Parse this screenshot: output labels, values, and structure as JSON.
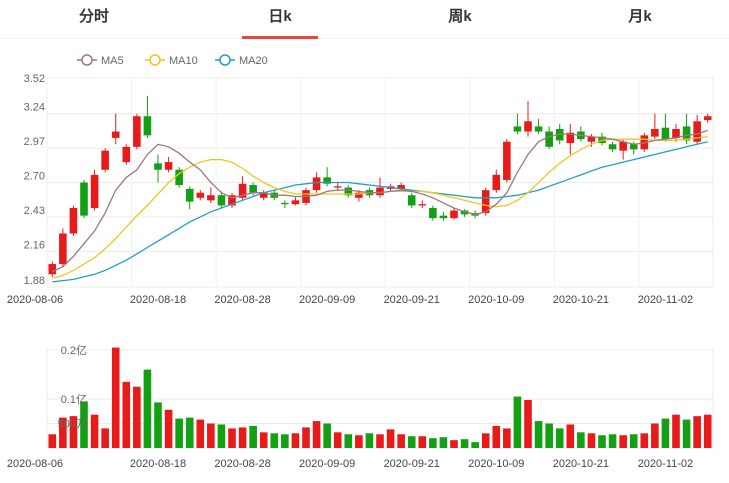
{
  "tabs": [
    {
      "label": "分时",
      "active": false
    },
    {
      "label": "日k",
      "active": true
    },
    {
      "label": "周k",
      "active": false
    },
    {
      "label": "月k",
      "active": false
    }
  ],
  "colors": {
    "up": "#e81b1b",
    "down": "#14a014",
    "ma5": "#a07878",
    "ma10": "#f2c61c",
    "ma20": "#21a0c6",
    "tab_active": "#e8473b"
  },
  "chart_data": [
    {
      "type": "candlestick",
      "legend": [
        {
          "name": "MA5",
          "color": "#a07878"
        },
        {
          "name": "MA10",
          "color": "#f2c61c"
        },
        {
          "name": "MA20",
          "color": "#21a0c6"
        }
      ],
      "y_ticks": [
        "3.52",
        "3.24",
        "2.97",
        "2.70",
        "2.43",
        "2.16",
        "1.88"
      ],
      "ylim": [
        1.88,
        3.52
      ],
      "x_ticks": [
        "2020-08-06",
        "2020-08-18",
        "2020-08-28",
        "2020-09-09",
        "2020-09-21",
        "2020-10-09",
        "2020-10-21",
        "2020-11-02"
      ],
      "x_tick_index": [
        0,
        10,
        18,
        26,
        34,
        42,
        50,
        58
      ],
      "candles": [
        [
          1.98,
          2.06,
          2.08,
          1.96
        ],
        [
          2.06,
          2.3,
          2.34,
          2.04
        ],
        [
          2.3,
          2.5,
          2.52,
          2.28
        ],
        [
          2.7,
          2.44,
          2.72,
          2.42
        ],
        [
          2.5,
          2.76,
          2.8,
          2.48
        ],
        [
          2.8,
          2.95,
          2.97,
          2.78
        ],
        [
          3.05,
          3.1,
          3.24,
          3.0
        ],
        [
          2.86,
          2.98,
          3.0,
          2.84
        ],
        [
          2.98,
          3.22,
          3.24,
          2.96
        ],
        [
          3.22,
          3.07,
          3.38,
          3.05
        ],
        [
          2.85,
          2.8,
          2.92,
          2.7
        ],
        [
          2.8,
          2.86,
          2.9,
          2.78
        ],
        [
          2.8,
          2.68,
          2.82,
          2.66
        ],
        [
          2.65,
          2.55,
          2.67,
          2.49
        ],
        [
          2.58,
          2.62,
          2.64,
          2.56
        ],
        [
          2.56,
          2.6,
          2.66,
          2.54
        ],
        [
          2.6,
          2.52,
          2.63,
          2.5
        ],
        [
          2.52,
          2.6,
          2.62,
          2.5
        ],
        [
          2.58,
          2.69,
          2.75,
          2.56
        ],
        [
          2.68,
          2.62,
          2.7,
          2.6
        ],
        [
          2.58,
          2.62,
          2.64,
          2.56
        ],
        [
          2.62,
          2.58,
          2.64,
          2.56
        ],
        [
          2.54,
          2.53,
          2.56,
          2.5
        ],
        [
          2.53,
          2.56,
          2.59,
          2.52
        ],
        [
          2.54,
          2.64,
          2.66,
          2.52
        ],
        [
          2.64,
          2.74,
          2.78,
          2.62
        ],
        [
          2.74,
          2.69,
          2.82,
          2.67
        ],
        [
          2.66,
          2.67,
          2.7,
          2.64
        ],
        [
          2.66,
          2.6,
          2.68,
          2.58
        ],
        [
          2.58,
          2.62,
          2.64,
          2.55
        ],
        [
          2.64,
          2.6,
          2.66,
          2.58
        ],
        [
          2.6,
          2.66,
          2.74,
          2.58
        ],
        [
          2.65,
          2.67,
          2.69,
          2.63
        ],
        [
          2.65,
          2.68,
          2.7,
          2.64
        ],
        [
          2.6,
          2.52,
          2.62,
          2.5
        ],
        [
          2.52,
          2.53,
          2.56,
          2.5
        ],
        [
          2.5,
          2.42,
          2.52,
          2.4
        ],
        [
          2.44,
          2.42,
          2.47,
          2.4
        ],
        [
          2.42,
          2.48,
          2.5,
          2.41
        ],
        [
          2.48,
          2.45,
          2.49,
          2.43
        ],
        [
          2.46,
          2.44,
          2.48,
          2.42
        ],
        [
          2.46,
          2.64,
          2.66,
          2.44
        ],
        [
          2.64,
          2.76,
          2.8,
          2.62
        ],
        [
          2.72,
          3.02,
          3.04,
          2.7
        ],
        [
          3.14,
          3.1,
          3.24,
          3.08
        ],
        [
          3.1,
          3.18,
          3.34,
          3.06
        ],
        [
          3.14,
          3.1,
          3.2,
          3.08
        ],
        [
          3.1,
          2.98,
          3.14,
          2.96
        ],
        [
          3.12,
          3.03,
          3.16,
          3.0
        ],
        [
          3.01,
          3.09,
          3.16,
          2.92
        ],
        [
          3.1,
          3.04,
          3.14,
          3.02
        ],
        [
          3.02,
          3.06,
          3.08,
          2.98
        ],
        [
          3.06,
          3.01,
          3.09,
          2.99
        ],
        [
          3.0,
          2.96,
          3.02,
          2.94
        ],
        [
          2.95,
          3.02,
          3.04,
          2.88
        ],
        [
          3.0,
          2.96,
          3.02,
          2.92
        ],
        [
          2.96,
          3.07,
          3.09,
          2.94
        ],
        [
          3.06,
          3.12,
          3.24,
          3.04
        ],
        [
          3.13,
          3.04,
          3.24,
          3.02
        ],
        [
          3.05,
          3.12,
          3.16,
          3.02
        ],
        [
          3.14,
          3.03,
          3.24,
          3.0
        ],
        [
          3.02,
          3.18,
          3.23,
          3.0
        ],
        [
          3.19,
          3.22,
          3.24,
          3.17
        ]
      ],
      "ma5": [
        2.0,
        2.04,
        2.12,
        2.22,
        2.32,
        2.46,
        2.64,
        2.74,
        2.8,
        2.92,
        3.0,
        2.98,
        2.93,
        2.86,
        2.8,
        2.7,
        2.62,
        2.58,
        2.6,
        2.62,
        2.62,
        2.6,
        2.6,
        2.59,
        2.59,
        2.6,
        2.63,
        2.64,
        2.64,
        2.63,
        2.62,
        2.62,
        2.63,
        2.64,
        2.63,
        2.61,
        2.58,
        2.54,
        2.5,
        2.47,
        2.45,
        2.47,
        2.53,
        2.62,
        2.78,
        2.92,
        3.02,
        3.06,
        3.08,
        3.08,
        3.07,
        3.06,
        3.05,
        3.04,
        3.02,
        3.0,
        3.01,
        3.03,
        3.04,
        3.05,
        3.07,
        3.08,
        3.11
      ],
      "ma10": [
        1.95,
        1.97,
        2.01,
        2.06,
        2.11,
        2.18,
        2.26,
        2.35,
        2.44,
        2.52,
        2.61,
        2.7,
        2.77,
        2.82,
        2.86,
        2.88,
        2.88,
        2.86,
        2.81,
        2.75,
        2.7,
        2.66,
        2.63,
        2.61,
        2.61,
        2.61,
        2.61,
        2.61,
        2.61,
        2.61,
        2.62,
        2.62,
        2.63,
        2.63,
        2.63,
        2.63,
        2.62,
        2.6,
        2.58,
        2.56,
        2.54,
        2.52,
        2.51,
        2.52,
        2.56,
        2.62,
        2.7,
        2.78,
        2.85,
        2.91,
        2.96,
        3.0,
        3.03,
        3.04,
        3.04,
        3.04,
        3.04,
        3.03,
        3.03,
        3.03,
        3.04,
        3.05,
        3.06
      ],
      "ma20": [
        1.92,
        1.93,
        1.94,
        1.96,
        1.98,
        2.01,
        2.05,
        2.09,
        2.14,
        2.19,
        2.24,
        2.29,
        2.34,
        2.39,
        2.43,
        2.47,
        2.5,
        2.53,
        2.56,
        2.59,
        2.62,
        2.64,
        2.66,
        2.68,
        2.69,
        2.7,
        2.7,
        2.7,
        2.7,
        2.69,
        2.68,
        2.67,
        2.66,
        2.65,
        2.64,
        2.63,
        2.62,
        2.61,
        2.6,
        2.59,
        2.58,
        2.58,
        2.58,
        2.59,
        2.6,
        2.62,
        2.64,
        2.67,
        2.7,
        2.73,
        2.76,
        2.79,
        2.82,
        2.84,
        2.86,
        2.88,
        2.9,
        2.92,
        2.94,
        2.96,
        2.98,
        3.0,
        3.02
      ]
    },
    {
      "type": "bar",
      "y_ticks": [
        "0.2亿",
        "0.1亿",
        "500万"
      ],
      "ylim": [
        0,
        0.2
      ],
      "x_ticks": [
        "2020-08-06",
        "2020-08-18",
        "2020-08-28",
        "2020-09-09",
        "2020-09-21",
        "2020-10-09",
        "2020-10-21",
        "2020-11-02"
      ],
      "volumes": [
        0.028,
        0.062,
        0.065,
        0.095,
        0.068,
        0.04,
        0.205,
        0.135,
        0.125,
        0.16,
        0.093,
        0.078,
        0.06,
        0.062,
        0.058,
        0.05,
        0.048,
        0.04,
        0.042,
        0.045,
        0.032,
        0.03,
        0.028,
        0.03,
        0.042,
        0.055,
        0.05,
        0.032,
        0.028,
        0.026,
        0.03,
        0.028,
        0.038,
        0.028,
        0.024,
        0.024,
        0.02,
        0.022,
        0.016,
        0.018,
        0.012,
        0.03,
        0.045,
        0.04,
        0.105,
        0.098,
        0.055,
        0.05,
        0.04,
        0.048,
        0.032,
        0.03,
        0.026,
        0.028,
        0.026,
        0.028,
        0.03,
        0.05,
        0.06,
        0.068,
        0.058,
        0.065,
        0.068
      ]
    }
  ]
}
